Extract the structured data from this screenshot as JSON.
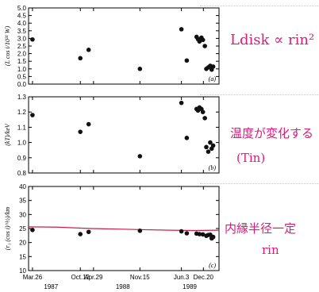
{
  "chart_data": [
    {
      "type": "scatter",
      "panel": "(a)",
      "ylabel": "(L cos i/10³¹ W)",
      "ylim": [
        0.0,
        5.0
      ],
      "yticks": [
        "0.0",
        "0.5",
        "1.0",
        "1.5",
        "2.0",
        "2.5",
        "3.0",
        "3.5",
        "4.0",
        "4.5",
        "5.0"
      ],
      "x": [
        0.0,
        0.98,
        1.15,
        2.2,
        3.05,
        3.16,
        3.36,
        3.39,
        3.42,
        3.46,
        3.49,
        3.53,
        3.56,
        3.6,
        3.64,
        3.67,
        3.7
      ],
      "y": [
        2.93,
        1.7,
        2.25,
        1.0,
        3.6,
        1.55,
        3.1,
        2.95,
        2.8,
        3.05,
        2.9,
        2.5,
        1.0,
        1.1,
        1.2,
        0.95,
        1.15
      ]
    },
    {
      "type": "scatter",
      "panel": "(b)",
      "ylabel": "(kT)/keV",
      "ylim": [
        0.8,
        1.3
      ],
      "yticks": [
        "0.8",
        "0.9",
        "1.0",
        "1.1",
        "1.2",
        "1.3"
      ],
      "x": [
        0.0,
        0.98,
        1.15,
        2.2,
        3.05,
        3.16,
        3.36,
        3.39,
        3.42,
        3.46,
        3.49,
        3.53,
        3.56,
        3.6,
        3.64,
        3.67,
        3.7
      ],
      "y": [
        1.18,
        1.07,
        1.12,
        0.91,
        1.26,
        1.03,
        1.22,
        1.21,
        1.23,
        1.22,
        1.2,
        1.16,
        0.97,
        0.94,
        1.0,
        0.96,
        0.98
      ]
    },
    {
      "type": "scatter",
      "panel": "(c)",
      "ylabel": "(r₁ (cos i)^½)/km",
      "ylim": [
        10,
        40
      ],
      "yticks": [
        "10",
        "15",
        "20",
        "25",
        "30",
        "35",
        "40"
      ],
      "x": [
        0.0,
        0.98,
        1.15,
        2.2,
        3.05,
        3.16,
        3.36,
        3.42,
        3.49,
        3.56,
        3.6,
        3.64,
        3.67,
        3.7
      ],
      "y": [
        24.5,
        23.0,
        23.8,
        24.2,
        24.0,
        23.3,
        23.2,
        23.0,
        22.9,
        22.4,
        22.7,
        22.8,
        21.5,
        22.0
      ]
    }
  ],
  "x_axis": {
    "xlim": [
      -0.08,
      3.82
    ],
    "ticks": [
      {
        "x": 0.0,
        "label": "Mar.26"
      },
      {
        "x": 0.98,
        "label": "Oct.12"
      },
      {
        "x": 1.25,
        "label": "Apr.29"
      },
      {
        "x": 2.2,
        "label": "Nov.15"
      },
      {
        "x": 3.05,
        "label": "Jun.3"
      },
      {
        "x": 3.5,
        "label": "Dec.20"
      }
    ],
    "years": [
      {
        "x": 0.38,
        "label": "1987"
      },
      {
        "x": 1.85,
        "label": "1988"
      },
      {
        "x": 3.22,
        "label": "1989"
      }
    ]
  },
  "annotations": {
    "fit_line_color": "#c81e4a",
    "handwriting_color": "#e0187a",
    "note_a": "Ldisk ∝ rin² T",
    "note_b_line1": "温度が変化する",
    "note_b_line2": "(Tin)",
    "note_c_line1": "内縁半径一定",
    "note_c_line2": "rin"
  }
}
